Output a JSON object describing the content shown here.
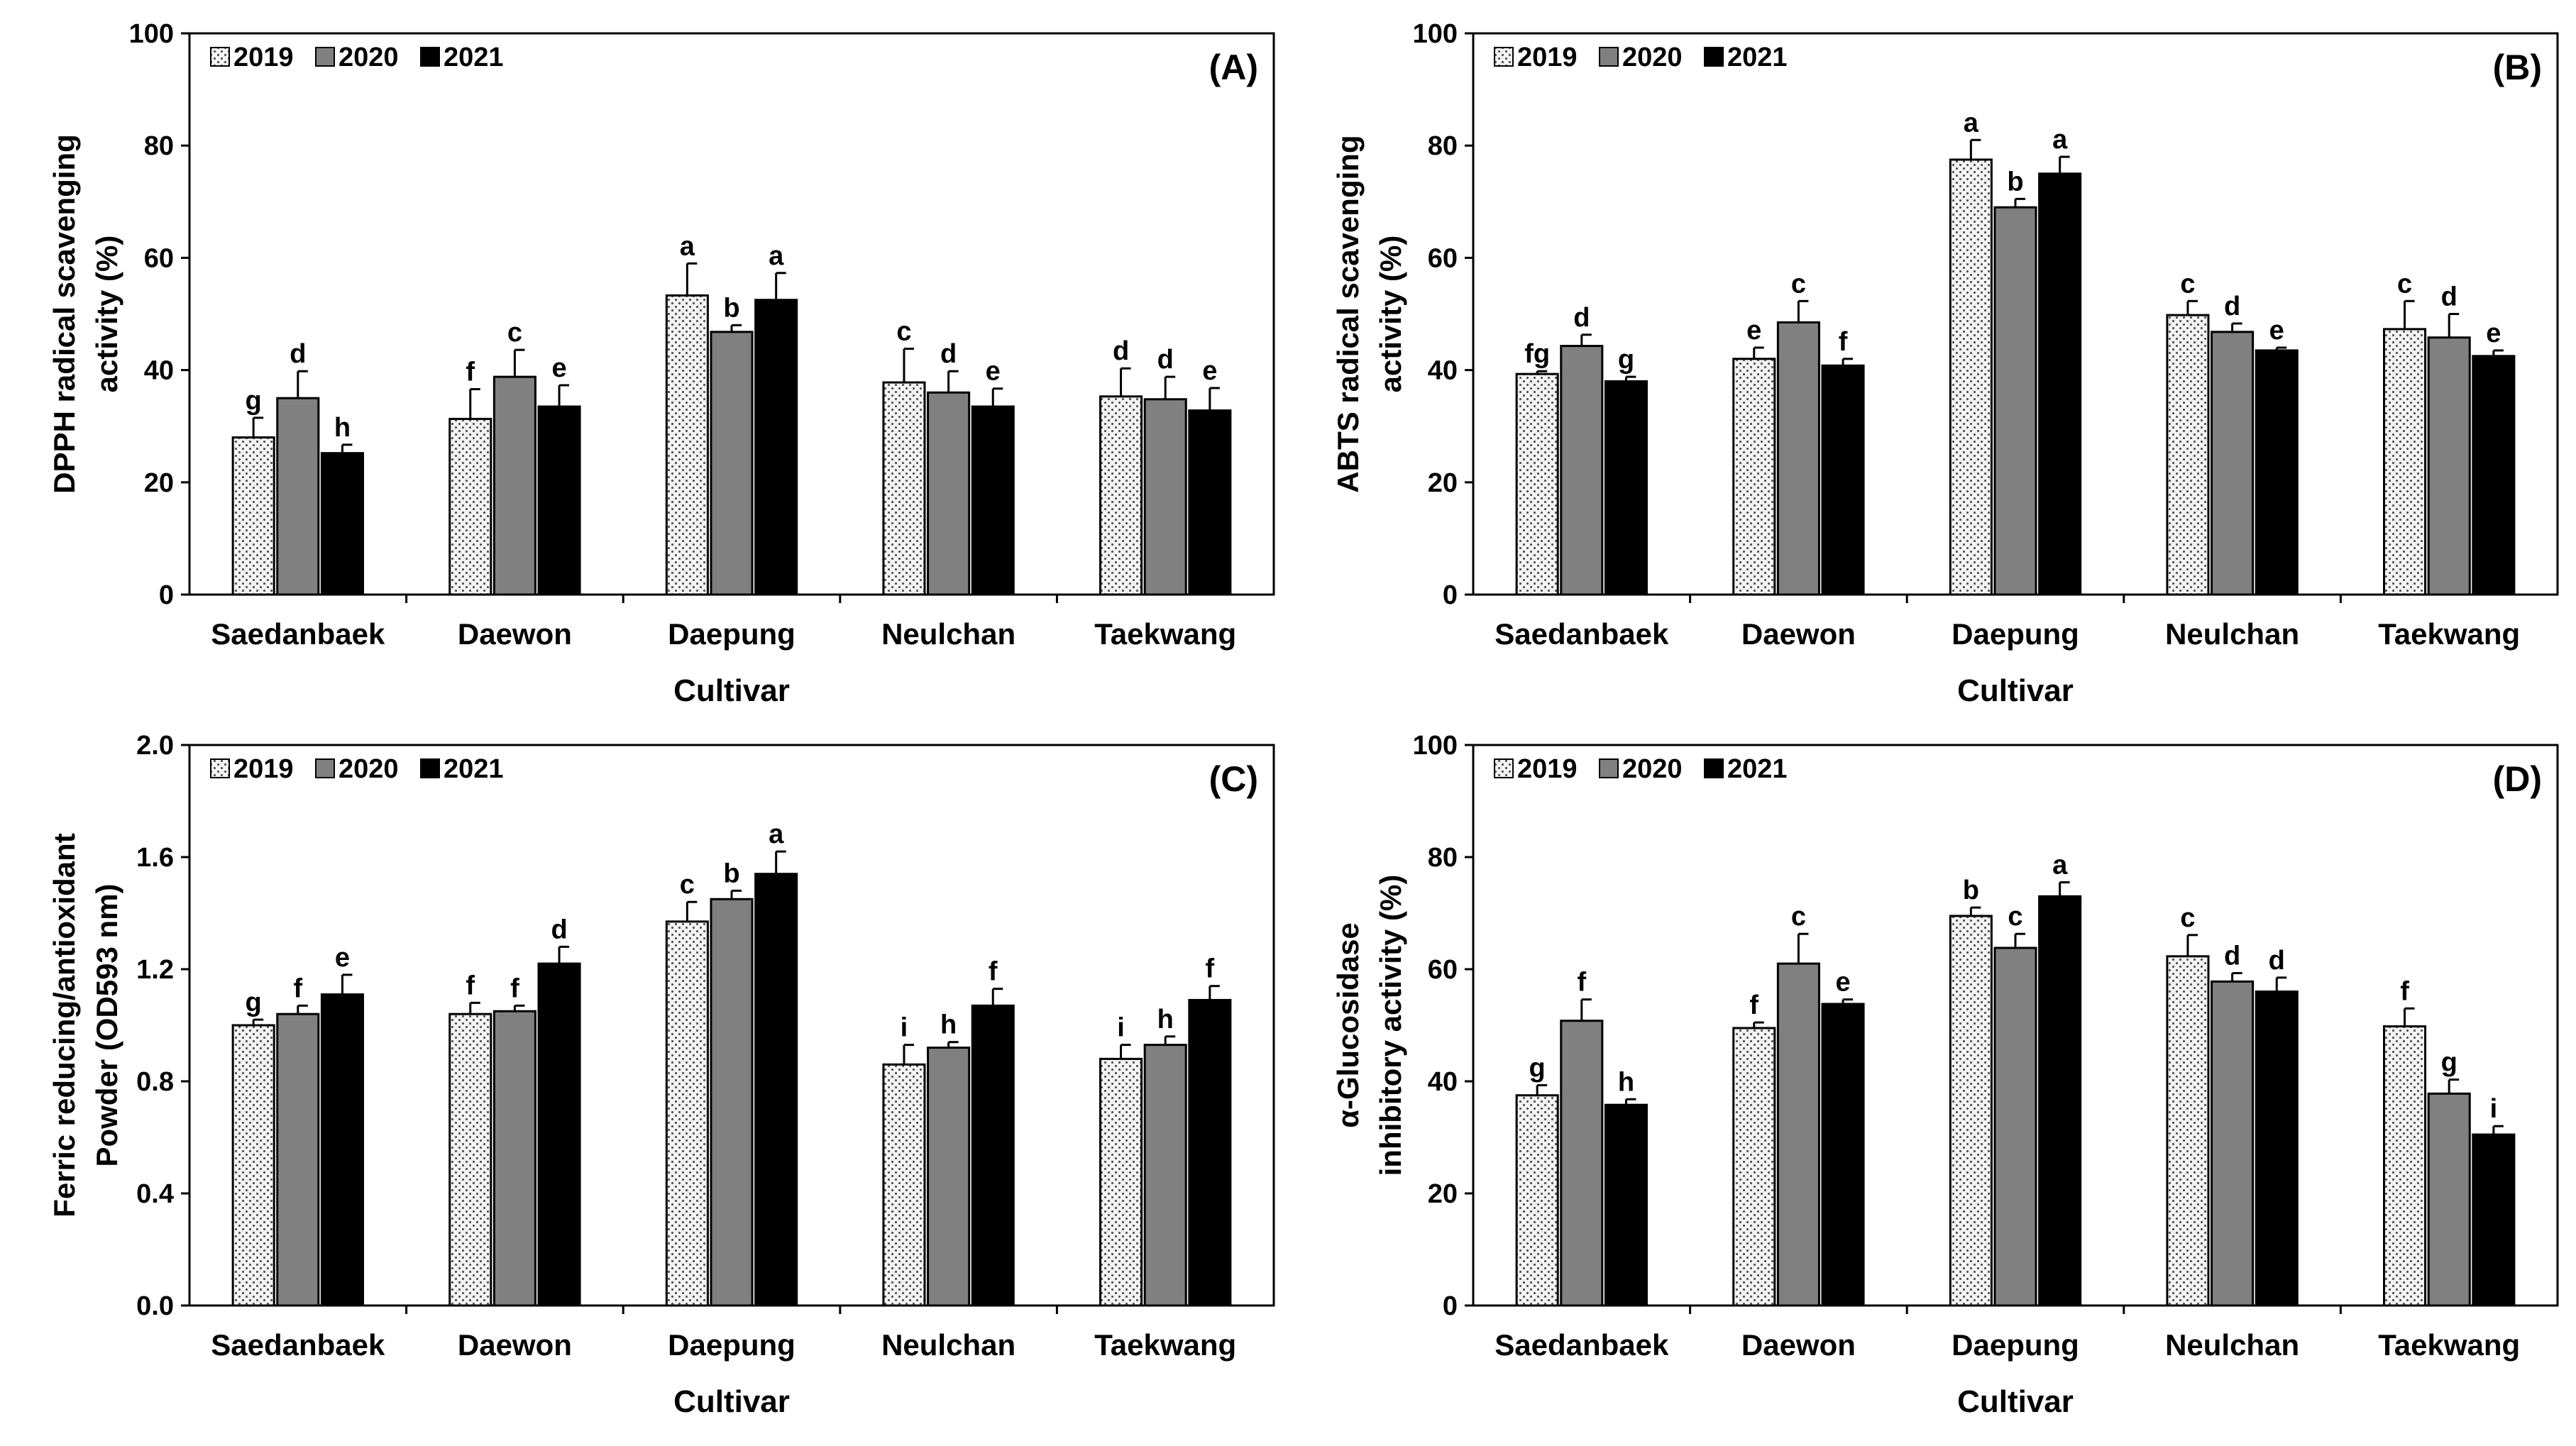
{
  "chart_data": [
    {
      "type": "bar",
      "panel_label": "(A)",
      "title": "",
      "ylabel": "DPPH radical scavenging activity (%)",
      "ylabel_lines": [
        "DPPH radical scavenging",
        "activity (%)"
      ],
      "xlabel": "Cultivar",
      "ylim": [
        0,
        100
      ],
      "yticks": [
        "0",
        "20",
        "40",
        "60",
        "80",
        "100"
      ],
      "grid": false,
      "legend_position": "top-left",
      "categories": [
        "Saedanbaek",
        "Daewon",
        "Daepung",
        "Neulchan",
        "Taekwang"
      ],
      "series": [
        {
          "name": "2019",
          "values": [
            28.0,
            31.3,
            53.3,
            37.8,
            35.3
          ],
          "errors": [
            3.5,
            5.3,
            5.7,
            6.0,
            5.0
          ],
          "letters": [
            "g",
            "f",
            "a",
            "c",
            "d"
          ]
        },
        {
          "name": "2020",
          "values": [
            35.0,
            38.8,
            46.8,
            36.0,
            34.8
          ],
          "errors": [
            4.8,
            4.8,
            1.2,
            3.8,
            4.0
          ],
          "letters": [
            "d",
            "c",
            "b",
            "d",
            "d"
          ]
        },
        {
          "name": "2021",
          "values": [
            25.2,
            33.5,
            52.5,
            33.5,
            32.8
          ],
          "errors": [
            1.5,
            3.8,
            4.8,
            3.2,
            4.0
          ],
          "letters": [
            "h",
            "e",
            "a",
            "e",
            "e"
          ]
        }
      ]
    },
    {
      "type": "bar",
      "panel_label": "(B)",
      "title": "",
      "ylabel": "ABTS radical scavenging activity (%)",
      "ylabel_lines": [
        "ABTS radical scavenging",
        "activity (%)"
      ],
      "xlabel": "Cultivar",
      "ylim": [
        0,
        100
      ],
      "yticks": [
        "0",
        "20",
        "40",
        "60",
        "80",
        "100"
      ],
      "grid": false,
      "legend_position": "top-left",
      "categories": [
        "Saedanbaek",
        "Daewon",
        "Daepung",
        "Neulchan",
        "Taekwang"
      ],
      "series": [
        {
          "name": "2019",
          "values": [
            39.3,
            42.0,
            77.5,
            49.8,
            47.3
          ],
          "errors": [
            0.5,
            2.0,
            3.5,
            2.5,
            5.0
          ],
          "letters": [
            "fg",
            "e",
            "a",
            "c",
            "c"
          ]
        },
        {
          "name": "2020",
          "values": [
            44.3,
            48.5,
            69.0,
            46.8,
            45.8
          ],
          "errors": [
            2.0,
            3.8,
            1.5,
            1.5,
            4.2
          ],
          "letters": [
            "d",
            "c",
            "b",
            "d",
            "d"
          ]
        },
        {
          "name": "2021",
          "values": [
            38.0,
            40.8,
            75.0,
            43.5,
            42.5
          ],
          "errors": [
            0.8,
            1.2,
            3.0,
            0.5,
            1.0
          ],
          "letters": [
            "g",
            "f",
            "a",
            "e",
            "e"
          ]
        }
      ]
    },
    {
      "type": "bar",
      "panel_label": "(C)",
      "title": "",
      "ylabel": "Ferric reducing/antioxidant Powder (OD593 nm)",
      "ylabel_lines": [
        "Ferric reducing/antioxidant",
        "Powder (OD593 nm)"
      ],
      "xlabel": "Cultivar",
      "ylim": [
        0,
        2.0
      ],
      "yticks": [
        "0.0",
        "0.4",
        "0.8",
        "1.2",
        "1.6",
        "2.0"
      ],
      "grid": false,
      "legend_position": "top-left",
      "categories": [
        "Saedanbaek",
        "Daewon",
        "Daepung",
        "Neulchan",
        "Taekwang"
      ],
      "series": [
        {
          "name": "2019",
          "values": [
            1.0,
            1.04,
            1.37,
            0.86,
            0.88
          ],
          "errors": [
            0.02,
            0.04,
            0.07,
            0.07,
            0.05
          ],
          "letters": [
            "g",
            "f",
            "c",
            "i",
            "i"
          ]
        },
        {
          "name": "2020",
          "values": [
            1.04,
            1.05,
            1.45,
            0.92,
            0.93
          ],
          "errors": [
            0.03,
            0.02,
            0.03,
            0.02,
            0.03
          ],
          "letters": [
            "f",
            "f",
            "b",
            "h",
            "h"
          ]
        },
        {
          "name": "2021",
          "values": [
            1.11,
            1.22,
            1.54,
            1.07,
            1.09
          ],
          "errors": [
            0.07,
            0.06,
            0.08,
            0.06,
            0.05
          ],
          "letters": [
            "e",
            "d",
            "a",
            "f",
            "f"
          ]
        }
      ]
    },
    {
      "type": "bar",
      "panel_label": "(D)",
      "title": "",
      "ylabel": "α-Glucosidase inhibitory activity (%)",
      "ylabel_lines": [
        "α-Glucosidase",
        "inhibitory activity (%)"
      ],
      "xlabel": "Cultivar",
      "ylim": [
        0,
        100
      ],
      "yticks": [
        "0",
        "20",
        "40",
        "60",
        "80",
        "100"
      ],
      "grid": false,
      "legend_position": "top-left",
      "categories": [
        "Saedanbaek",
        "Daewon",
        "Daepung",
        "Neulchan",
        "Taekwang"
      ],
      "series": [
        {
          "name": "2019",
          "values": [
            37.5,
            49.5,
            69.5,
            62.3,
            49.8
          ],
          "errors": [
            1.8,
            1.0,
            1.5,
            3.8,
            3.2
          ],
          "letters": [
            "g",
            "f",
            "b",
            "c",
            "f"
          ]
        },
        {
          "name": "2020",
          "values": [
            50.8,
            61.0,
            63.8,
            57.8,
            37.8
          ],
          "errors": [
            3.8,
            5.3,
            2.5,
            1.5,
            2.5
          ],
          "letters": [
            "f",
            "c",
            "c",
            "d",
            "g"
          ]
        },
        {
          "name": "2021",
          "values": [
            35.8,
            53.8,
            73.0,
            56.0,
            30.5
          ],
          "errors": [
            1.0,
            0.8,
            2.5,
            2.5,
            1.5
          ],
          "letters": [
            "h",
            "e",
            "a",
            "d",
            "i"
          ]
        }
      ]
    }
  ],
  "series_styles": [
    {
      "fill": "#f4f4f4",
      "pattern": "dotted"
    },
    {
      "fill": "#808080",
      "pattern": "solid"
    },
    {
      "fill": "#000000",
      "pattern": "solid"
    }
  ]
}
